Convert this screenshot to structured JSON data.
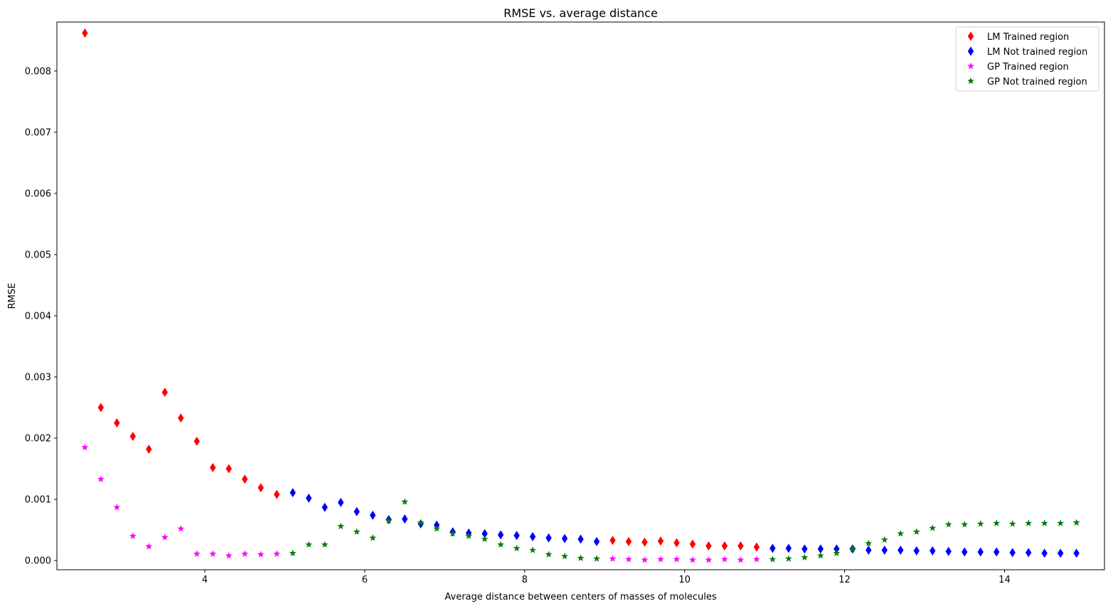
{
  "chart_data": {
    "type": "scatter",
    "title": "RMSE vs. average distance",
    "xlabel": "Average distance between centers of masses of molecules",
    "ylabel": "RMSE",
    "xlim": [
      2.15,
      15.25
    ],
    "ylim": [
      -0.00015,
      0.0088
    ],
    "x_ticks": [
      4,
      6,
      8,
      10,
      12,
      14
    ],
    "x_tick_labels": [
      "4",
      "6",
      "8",
      "10",
      "12",
      "14"
    ],
    "y_ticks": [
      0,
      0.001,
      0.002,
      0.003,
      0.004,
      0.005,
      0.006,
      0.007,
      0.008
    ],
    "y_tick_labels": [
      "0.000",
      "0.001",
      "0.002",
      "0.003",
      "0.004",
      "0.005",
      "0.006",
      "0.007",
      "0.008"
    ],
    "grid": false,
    "legend_position": "top-right",
    "series": [
      {
        "name": "LM Trained region",
        "color": "#ff0000",
        "marker": "diamond",
        "x": [
          2.5,
          2.7,
          2.9,
          3.1,
          3.3,
          3.5,
          3.7,
          3.9,
          4.1,
          4.3,
          4.5,
          4.7,
          4.9,
          9.1,
          9.3,
          9.5,
          9.7,
          9.9,
          10.1,
          10.3,
          10.5,
          10.7,
          10.9
        ],
        "y": [
          0.00862,
          0.0025,
          0.00225,
          0.00203,
          0.00182,
          0.00275,
          0.00233,
          0.00195,
          0.00152,
          0.0015,
          0.00133,
          0.00119,
          0.00108,
          0.00033,
          0.00031,
          0.0003,
          0.00032,
          0.00029,
          0.00027,
          0.00024,
          0.00024,
          0.00024,
          0.00022
        ]
      },
      {
        "name": "LM Not trained region",
        "color": "#0000ff",
        "marker": "diamond",
        "x": [
          5.1,
          5.3,
          5.5,
          5.7,
          5.9,
          6.1,
          6.3,
          6.5,
          6.7,
          6.9,
          7.1,
          7.3,
          7.5,
          7.7,
          7.9,
          8.1,
          8.3,
          8.5,
          8.7,
          8.9,
          11.1,
          11.3,
          11.5,
          11.7,
          11.9,
          12.1,
          12.3,
          12.5,
          12.7,
          12.9,
          13.1,
          13.3,
          13.5,
          13.7,
          13.9,
          14.1,
          14.3,
          14.5,
          14.7,
          14.9
        ],
        "y": [
          0.00111,
          0.00102,
          0.00087,
          0.00095,
          0.0008,
          0.00074,
          0.00067,
          0.00068,
          0.0006,
          0.00058,
          0.00047,
          0.00045,
          0.00044,
          0.00042,
          0.00041,
          0.00039,
          0.00037,
          0.00036,
          0.00035,
          0.00031,
          0.0002,
          0.0002,
          0.00019,
          0.00019,
          0.00019,
          0.00019,
          0.00017,
          0.00017,
          0.00017,
          0.00016,
          0.00016,
          0.00015,
          0.00014,
          0.00014,
          0.00014,
          0.00013,
          0.00013,
          0.00012,
          0.00012,
          0.00012
        ]
      },
      {
        "name": "GP Trained region",
        "color": "#ff00ff",
        "marker": "star",
        "x": [
          2.5,
          2.7,
          2.9,
          3.1,
          3.3,
          3.5,
          3.7,
          3.9,
          4.1,
          4.3,
          4.5,
          4.7,
          4.9,
          9.1,
          9.3,
          9.5,
          9.7,
          9.9,
          10.1,
          10.3,
          10.5,
          10.7,
          10.9
        ],
        "y": [
          0.00185,
          0.00133,
          0.00087,
          0.0004,
          0.00023,
          0.00038,
          0.00052,
          0.00011,
          0.00011,
          8e-05,
          0.00011,
          0.0001,
          0.00011,
          3e-05,
          2e-05,
          1e-05,
          2e-05,
          2e-05,
          1e-05,
          1e-05,
          2e-05,
          1e-05,
          2e-05
        ]
      },
      {
        "name": "GP Not trained region",
        "color": "#008000",
        "marker": "star",
        "x": [
          5.1,
          5.3,
          5.5,
          5.7,
          5.9,
          6.1,
          6.3,
          6.5,
          6.7,
          6.9,
          7.1,
          7.3,
          7.5,
          7.7,
          7.9,
          8.1,
          8.3,
          8.5,
          8.7,
          8.9,
          11.1,
          11.3,
          11.5,
          11.7,
          11.9,
          12.1,
          12.3,
          12.5,
          12.7,
          12.9,
          13.1,
          13.3,
          13.5,
          13.7,
          13.9,
          14.1,
          14.3,
          14.5,
          14.7,
          14.9
        ],
        "y": [
          0.00012,
          0.00026,
          0.00026,
          0.00056,
          0.00047,
          0.00037,
          0.00065,
          0.00096,
          0.00062,
          0.00052,
          0.00044,
          0.0004,
          0.00035,
          0.00026,
          0.0002,
          0.00017,
          0.0001,
          7e-05,
          4e-05,
          3e-05,
          2e-05,
          3e-05,
          5e-05,
          8e-05,
          0.00012,
          0.00019,
          0.00028,
          0.00034,
          0.00044,
          0.00047,
          0.00053,
          0.00059,
          0.00059,
          0.0006,
          0.00061,
          0.0006,
          0.00061,
          0.00061,
          0.00061,
          0.00062
        ]
      }
    ]
  }
}
